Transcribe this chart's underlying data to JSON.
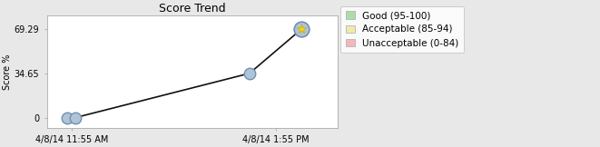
{
  "title": "Score Trend",
  "ylabel": "Score %",
  "xlabel_ticks": [
    "4/8/14 11:55 AM",
    "4/8/14 1:55 PM"
  ],
  "x_values": [
    0,
    0.15,
    3.5,
    4.5
  ],
  "y_values": [
    0.0,
    0.0,
    34.65,
    69.29
  ],
  "yticks": [
    0,
    34.65,
    69.29
  ],
  "yticklabels": [
    "0",
    "34.65",
    "69.29"
  ],
  "x_tick_positions": [
    0.075,
    4.0
  ],
  "line_color": "#111111",
  "circle_facecolor": "#b0c4d8",
  "circle_edgecolor": "#7090b0",
  "star_facecolor": "#f5d020",
  "star_edgecolor": "#c8a800",
  "bg_color": "#e8e8e8",
  "plot_bg": "#ffffff",
  "legend_good_color": "#aaddaa",
  "legend_acceptable_color": "#eeeaaa",
  "legend_unacceptable_color": "#f5b8b8",
  "title_fontsize": 9,
  "axis_fontsize": 7,
  "legend_fontsize": 7.5,
  "ylim": [
    -8,
    80
  ],
  "xlim": [
    -0.4,
    5.2
  ]
}
